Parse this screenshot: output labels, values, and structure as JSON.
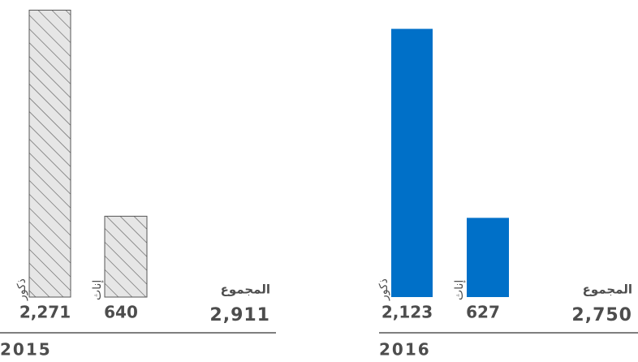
{
  "chart_data": [
    {
      "type": "bar",
      "title": "2015",
      "categories": [
        "ذكور",
        "إناث"
      ],
      "values": [
        2271,
        640
      ],
      "value_labels": [
        "2,271",
        "640"
      ],
      "total_label": "المجموع",
      "total": 2911,
      "total_value_label": "2,911",
      "color": "#e6e6e6",
      "hatched": true,
      "ylim": [
        0,
        2300
      ]
    },
    {
      "type": "bar",
      "title": "2016",
      "categories": [
        "ذكور",
        "إناث"
      ],
      "values": [
        2123,
        627
      ],
      "value_labels": [
        "2,123",
        "627"
      ],
      "total_label": "المجموع",
      "total": 2750,
      "total_value_label": "2,750",
      "color": "#0070c8",
      "hatched": false,
      "ylim": [
        0,
        2300
      ]
    }
  ]
}
